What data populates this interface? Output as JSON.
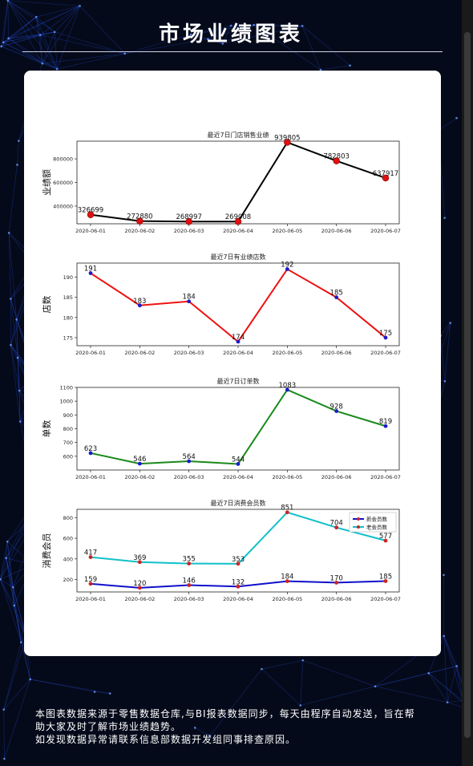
{
  "header": {
    "title": "市场业绩图表"
  },
  "colors": {
    "background": "#050a1a",
    "card": "#ffffff",
    "accent_line": "#2a5cff"
  },
  "footer": {
    "line1": "本图表数据来源于零售数据仓库,与BI报表数据同步，每天由程序自动发送，旨在帮",
    "line2": "助大家及时了解市场业绩趋势。",
    "line3": "如发现数据异常请联系信息部数据开发组同事排查原因。"
  },
  "chart_data": [
    {
      "type": "line",
      "title": "最近7日门店销售业绩",
      "ylabel": "业绩额",
      "xlabel": "",
      "categories": [
        "2020-06-01",
        "2020-06-02",
        "2020-06-03",
        "2020-06-04",
        "2020-06-05",
        "2020-06-06",
        "2020-06-07"
      ],
      "ylim": [
        250000,
        950000
      ],
      "yticks": [
        400000,
        600000,
        800000
      ],
      "ytick_labels": [
        "400000",
        "600000",
        "800000"
      ],
      "line_color": "#000000",
      "marker_color": "#e01010",
      "series": [
        {
          "values": [
            326699,
            272880,
            268997,
            269008,
            939805,
            782803,
            637917
          ],
          "labels": [
            "326699",
            "272880",
            "268997",
            "269008",
            "939805",
            "782803",
            "637917"
          ]
        }
      ],
      "legend": null
    },
    {
      "type": "line",
      "title": "最近7日有业绩店数",
      "ylabel": "店数",
      "xlabel": "",
      "categories": [
        "2020-06-01",
        "2020-06-02",
        "2020-06-03",
        "2020-06-04",
        "2020-06-05",
        "2020-06-06",
        "2020-06-07"
      ],
      "ylim": [
        173,
        193.5
      ],
      "yticks": [
        175,
        180,
        185,
        190
      ],
      "ytick_labels": [
        "175",
        "180",
        "185",
        "190"
      ],
      "line_color": "#ee1111",
      "marker_color": "#1a1acc",
      "series": [
        {
          "values": [
            191,
            183,
            184,
            174,
            192,
            185,
            175
          ],
          "labels": [
            "191",
            "183",
            "184",
            "174",
            "192",
            "185",
            "175"
          ]
        }
      ],
      "legend": null
    },
    {
      "type": "line",
      "title": "最近7日订单数",
      "ylabel": "单数",
      "xlabel": "",
      "categories": [
        "2020-06-01",
        "2020-06-02",
        "2020-06-03",
        "2020-06-04",
        "2020-06-05",
        "2020-06-06",
        "2020-06-07"
      ],
      "ylim": [
        500,
        1100
      ],
      "yticks": [
        600,
        700,
        800,
        900,
        1000,
        1100
      ],
      "ytick_labels": [
        "600",
        "700",
        "800",
        "900",
        "1000",
        "1100"
      ],
      "line_color": "#1a8a1a",
      "marker_color": "#1a1acc",
      "series": [
        {
          "values": [
            623,
            546,
            564,
            544,
            1083,
            928,
            819
          ],
          "labels": [
            "623",
            "546",
            "564",
            "544",
            "1083",
            "928",
            "819"
          ]
        }
      ],
      "legend": null
    },
    {
      "type": "line",
      "title": "最近7日消费会员数",
      "ylabel": "消费会员",
      "xlabel": "",
      "categories": [
        "2020-06-01",
        "2020-06-02",
        "2020-06-03",
        "2020-06-04",
        "2020-06-05",
        "2020-06-06",
        "2020-06-07"
      ],
      "ylim": [
        80,
        880
      ],
      "yticks": [
        200,
        400,
        600,
        800
      ],
      "ytick_labels": [
        "200",
        "400",
        "600",
        "800"
      ],
      "marker_color": "#cc2222",
      "series": [
        {
          "name": "新会员数",
          "color": "#1010cc",
          "values": [
            159,
            120,
            146,
            132,
            184,
            170,
            185
          ],
          "labels": [
            "159",
            "120",
            "146",
            "132",
            "184",
            "170",
            "185"
          ]
        },
        {
          "name": "老会员数",
          "color": "#10c0c8",
          "values": [
            417,
            369,
            355,
            353,
            851,
            704,
            577
          ],
          "labels": [
            "417",
            "369",
            "355",
            "353",
            "851",
            "704",
            "577"
          ]
        }
      ],
      "legend": "top-right"
    }
  ]
}
